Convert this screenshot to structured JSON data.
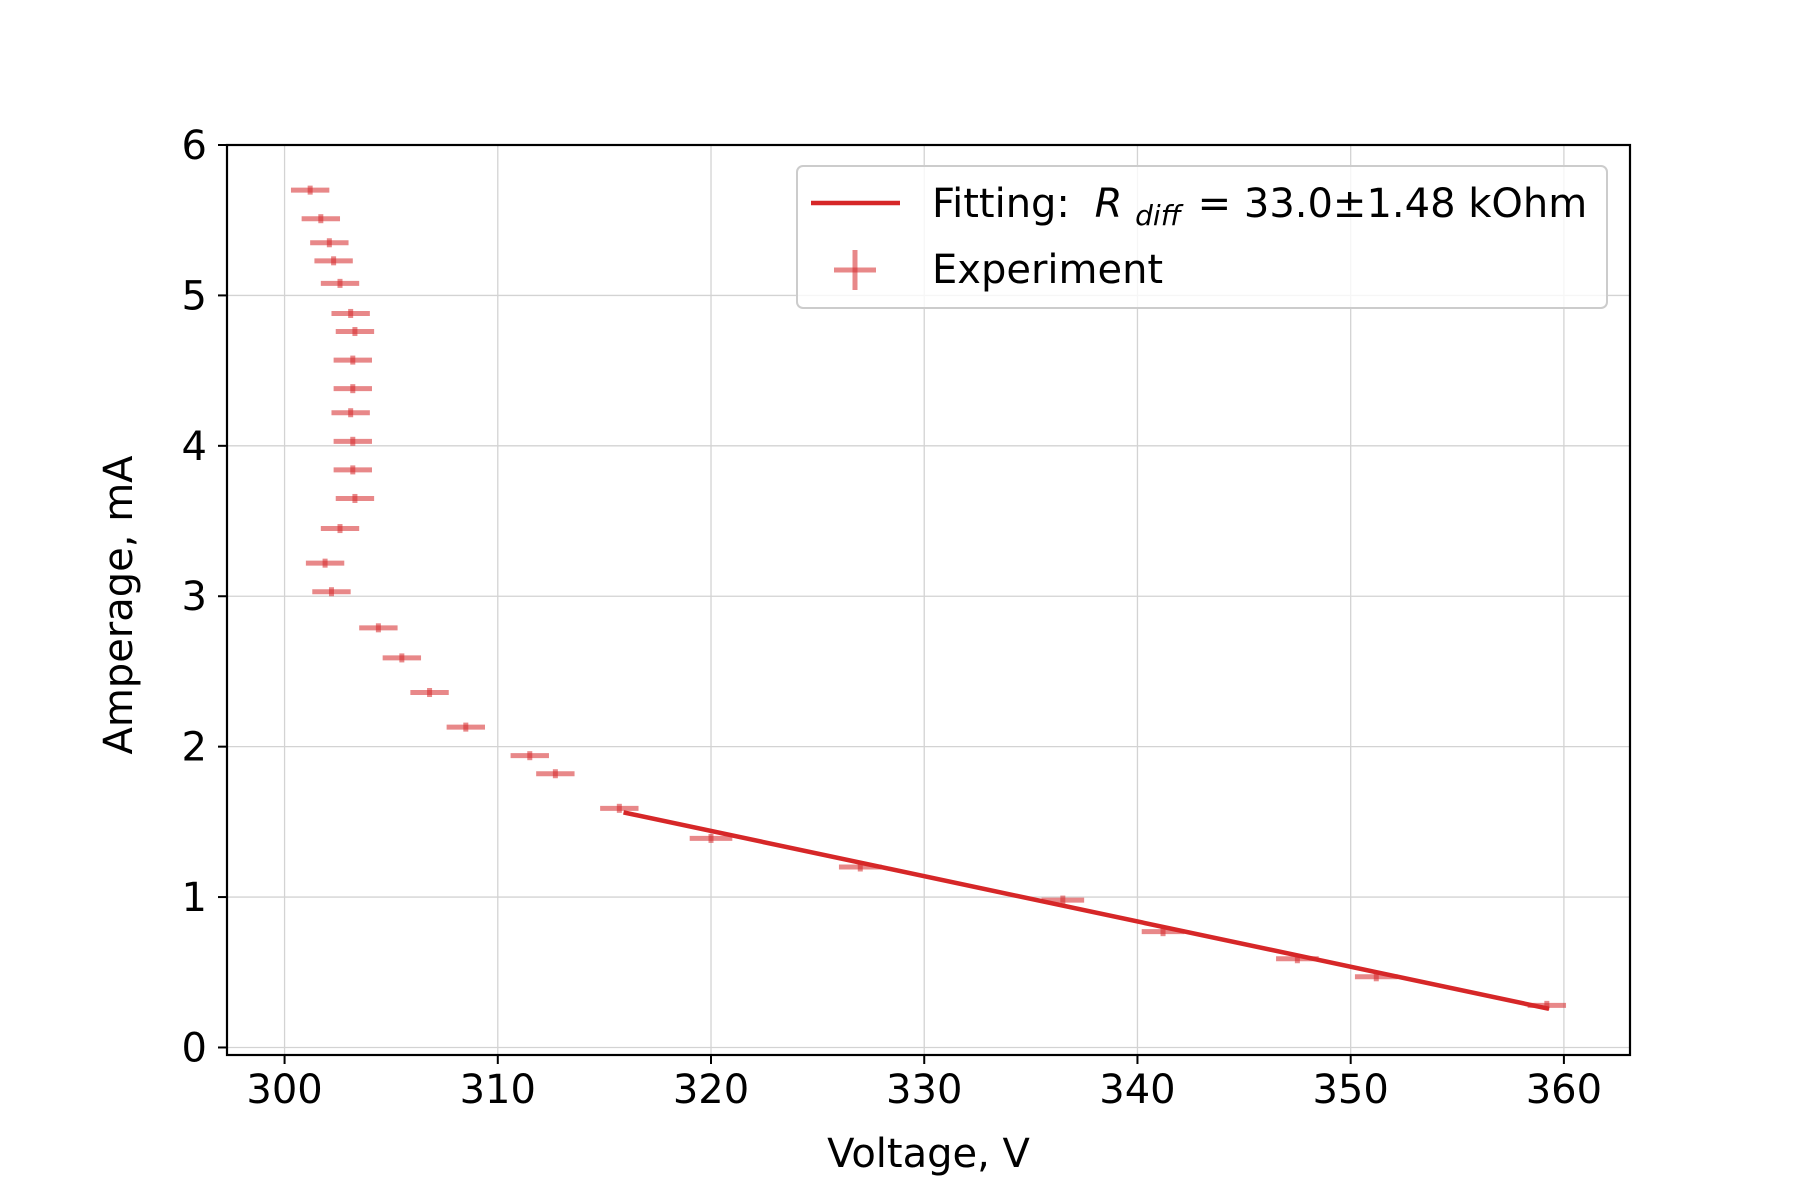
{
  "chart_data": {
    "type": "scatter",
    "xlabel": "Voltage, V",
    "ylabel": "Amperage, mA",
    "xlim": [
      297.3,
      363.1
    ],
    "ylim": [
      -0.05,
      6.0
    ],
    "xticks": [
      300,
      310,
      320,
      330,
      340,
      350,
      360
    ],
    "yticks": [
      0,
      1,
      2,
      3,
      4,
      5,
      6
    ],
    "grid": true,
    "legend_position": "top-right",
    "colors": {
      "series": "#d62728",
      "axis": "#000000",
      "grid": "#d3d3d3"
    },
    "series": [
      {
        "name": "Fitting",
        "kind": "line",
        "legend_text": "Fitting:",
        "legend_symbol_base": "R",
        "legend_symbol_sub": "diff",
        "legend_value": "=  33.0±1.48 kOhm",
        "x": [
          316.0,
          359.2
        ],
        "y": [
          1.56,
          0.26
        ]
      },
      {
        "name": "Experiment",
        "kind": "errorbar",
        "legend_text": "Experiment",
        "x": [
          301.2,
          301.7,
          302.1,
          302.3,
          302.6,
          303.1,
          303.3,
          303.2,
          303.2,
          303.1,
          303.2,
          303.2,
          303.3,
          302.6,
          301.9,
          302.2,
          304.4,
          305.5,
          306.8,
          308.5,
          311.5,
          312.7,
          315.7,
          320.0,
          327.0,
          336.5,
          341.2,
          347.5,
          351.2,
          359.2
        ],
        "y": [
          5.7,
          5.51,
          5.35,
          5.23,
          5.08,
          4.88,
          4.76,
          4.57,
          4.38,
          4.22,
          4.03,
          3.84,
          3.65,
          3.45,
          3.22,
          3.03,
          2.79,
          2.59,
          2.36,
          2.13,
          1.94,
          1.82,
          1.59,
          1.39,
          1.2,
          0.98,
          0.77,
          0.59,
          0.47,
          0.28
        ],
        "xerr": [
          0.9,
          0.9,
          0.9,
          0.9,
          0.9,
          0.9,
          0.9,
          0.9,
          0.9,
          0.9,
          0.9,
          0.9,
          0.9,
          0.9,
          0.9,
          0.9,
          0.9,
          0.9,
          0.9,
          0.9,
          0.9,
          0.9,
          0.9,
          1.0,
          1.0,
          1.0,
          1.0,
          1.0,
          1.0,
          0.9
        ],
        "yerr": [
          0.03,
          0.03,
          0.03,
          0.03,
          0.03,
          0.03,
          0.03,
          0.03,
          0.03,
          0.03,
          0.03,
          0.03,
          0.03,
          0.03,
          0.03,
          0.03,
          0.03,
          0.03,
          0.03,
          0.03,
          0.03,
          0.03,
          0.03,
          0.03,
          0.03,
          0.03,
          0.03,
          0.03,
          0.03,
          0.03
        ]
      }
    ]
  }
}
